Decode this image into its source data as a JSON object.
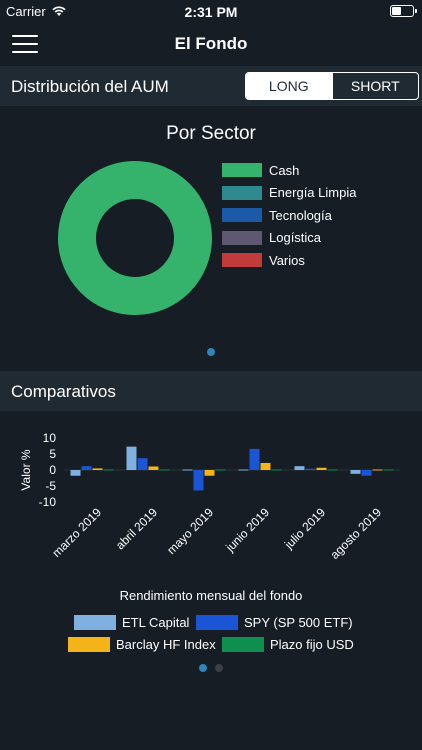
{
  "status_bar": {
    "carrier": "Carrier",
    "time": "2:31 PM"
  },
  "nav": {
    "title": "El Fondo"
  },
  "aum_section": {
    "title": "Distribución del AUM",
    "segments": [
      {
        "label": "LONG",
        "active": true
      },
      {
        "label": "SHORT",
        "active": false
      }
    ]
  },
  "colors": {
    "background": "#161d25",
    "header": "#1f2a33",
    "page_dot_active": "#2f86b8",
    "page_dot_inactive": "#3a4046"
  },
  "sector_chart": {
    "type": "pie",
    "title": "Por Sector",
    "slices": [
      {
        "label": "Cash",
        "value": 100,
        "color": "#35b36d"
      },
      {
        "label": "Energía Limpia",
        "value": 0,
        "color": "#2e8a8f"
      },
      {
        "label": "Tecnología",
        "value": 0,
        "color": "#1b5aa8"
      },
      {
        "label": "Logística",
        "value": 0,
        "color": "#5e5870"
      },
      {
        "label": "Varios",
        "value": 0,
        "color": "#c23b3b"
      }
    ]
  },
  "comparativos_section": {
    "title": "Comparativos"
  },
  "chart_data": {
    "type": "bar",
    "title": "Rendimiento mensual del fondo",
    "ylabel": "Valor %",
    "ylim": [
      -10,
      10
    ],
    "yticks": [
      10,
      5,
      0,
      -5,
      -10
    ],
    "categories": [
      "marzo 2019",
      "abril 2019",
      "mayo 2019",
      "junio 2019",
      "julio 2019",
      "agosto 2019"
    ],
    "series": [
      {
        "name": "ETL Capital",
        "color": "#7fb0e0",
        "values": [
          -1.8,
          7.3,
          -0.3,
          -0.3,
          1.2,
          -1.2
        ]
      },
      {
        "name": "SPY (SP 500 ETF)",
        "color": "#1a55d6",
        "values": [
          1.2,
          3.7,
          -6.4,
          6.6,
          0.4,
          -1.8
        ]
      },
      {
        "name": "Barclay HF Index",
        "color": "#f2b418",
        "values": [
          0.5,
          1.1,
          -1.8,
          2.2,
          0.7,
          0.0
        ]
      },
      {
        "name": "Plazo fijo USD",
        "color": "#0f8f4e",
        "values": [
          0.2,
          0.2,
          0.2,
          0.2,
          0.2,
          0.2
        ]
      }
    ],
    "legend": "bottom"
  }
}
